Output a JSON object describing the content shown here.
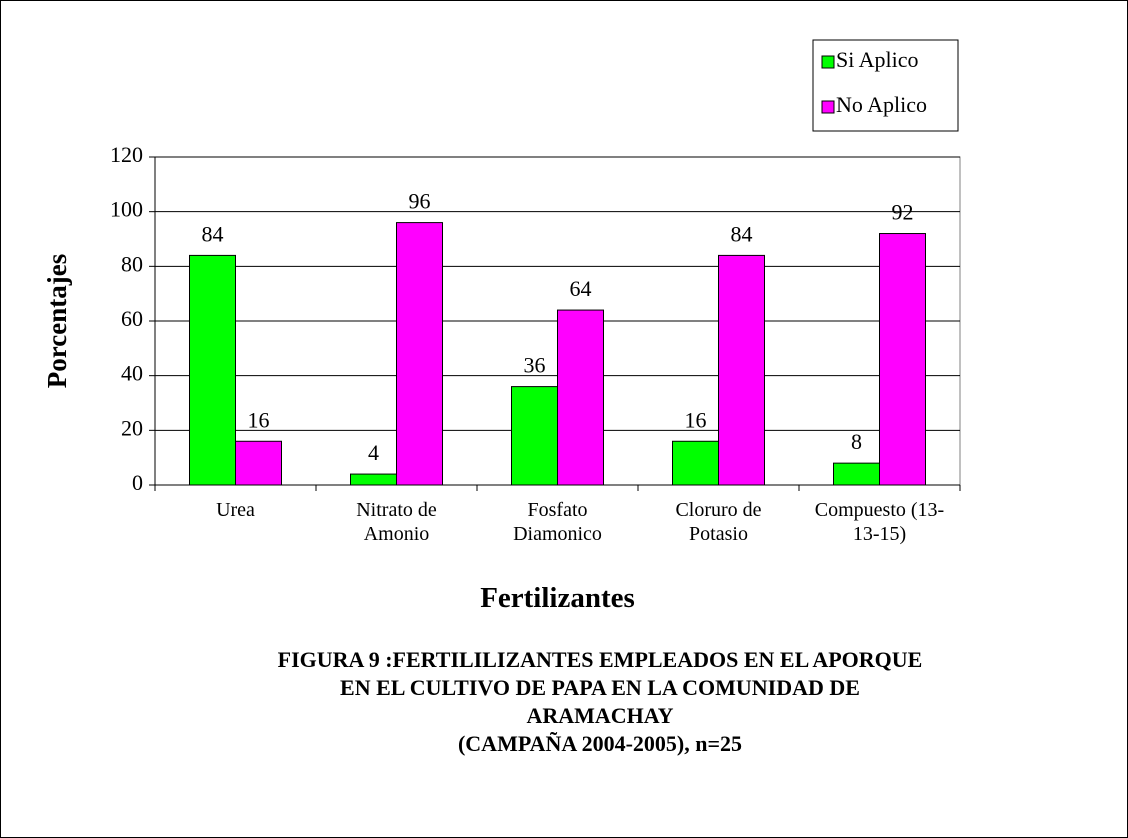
{
  "chart_data": {
    "type": "bar",
    "title": [
      "FIGURA 9 :FERTILILIZANTES EMPLEADOS EN EL APORQUE",
      "EN EL CULTIVO DE PAPA EN LA COMUNIDAD DE",
      "ARAMACHAY",
      "(CAMPAÑA 2004-2005), n=25"
    ],
    "x_label": "Fertilizantes",
    "y_label": "Porcentajes",
    "categories": [
      "Urea",
      "Nitrato de Amonio",
      "Fosfato Diamonico",
      "Cloruro de Potasio",
      "Compuesto (13-13-15)"
    ],
    "series": [
      {
        "name": "Si Aplico",
        "color": "#00ff00",
        "values": [
          84,
          4,
          36,
          16,
          8
        ]
      },
      {
        "name": "No Aplico",
        "color": "#ff00ff",
        "values": [
          16,
          96,
          64,
          84,
          92
        ]
      }
    ],
    "ylim": [
      0,
      120
    ],
    "yticks": [
      0,
      20,
      40,
      60,
      80,
      100,
      120
    ],
    "grid": true,
    "legend": "top-right"
  }
}
